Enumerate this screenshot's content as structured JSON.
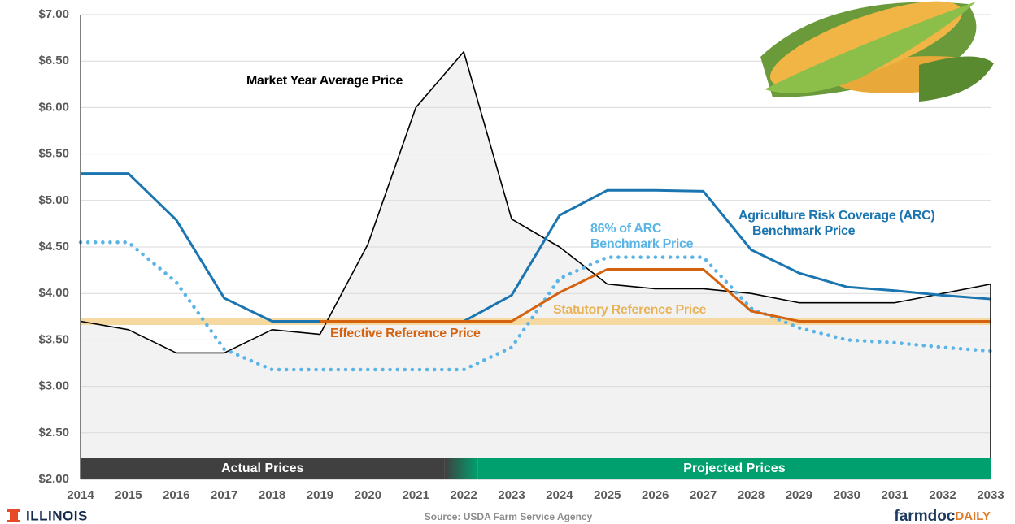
{
  "chart_data": {
    "type": "line",
    "x": [
      2014,
      2015,
      2016,
      2017,
      2018,
      2019,
      2020,
      2021,
      2022,
      2023,
      2024,
      2025,
      2026,
      2027,
      2028,
      2029,
      2030,
      2031,
      2032,
      2033
    ],
    "xlim": [
      2014,
      2033
    ],
    "ylim": [
      2,
      7
    ],
    "yticks": [
      {
        "value": 2,
        "label": "$2.00"
      },
      {
        "value": 2.5,
        "label": "$2.50"
      },
      {
        "value": 3,
        "label": "$3.00"
      },
      {
        "value": 3.5,
        "label": "$3.50"
      },
      {
        "value": 4,
        "label": "$4.00"
      },
      {
        "value": 4.5,
        "label": "$4.50"
      },
      {
        "value": 5,
        "label": "$5.00"
      },
      {
        "value": 5.5,
        "label": "$5.50"
      },
      {
        "value": 6,
        "label": "$6.00"
      },
      {
        "value": 6.5,
        "label": "$6.50"
      },
      {
        "value": 7,
        "label": "$7.00"
      }
    ],
    "grid": true,
    "series": [
      {
        "label": [
          "Statutory Reference Price"
        ],
        "color": "#f5d9a0",
        "text_color": "#e8b45a",
        "style": "band",
        "values": [
          3.7,
          3.7,
          3.7,
          3.7,
          3.7,
          3.7,
          3.7,
          3.7,
          3.7,
          3.7,
          3.7,
          3.7,
          3.7,
          3.7,
          3.7,
          3.7,
          3.7,
          3.7,
          3.7,
          3.7
        ]
      },
      {
        "label": [
          "Market Year Average Price"
        ],
        "color": "#000000",
        "text_color": "#000000",
        "style": "area",
        "fill": "#f2f2f2",
        "values": [
          3.7,
          3.61,
          3.36,
          3.36,
          3.61,
          3.56,
          4.53,
          6.0,
          6.6,
          4.8,
          4.5,
          4.1,
          4.05,
          4.05,
          4.0,
          3.9,
          3.9,
          3.9,
          4.0,
          4.1
        ]
      },
      {
        "label": [
          "86% of ARC",
          "Benchmark Price"
        ],
        "color": "#5ab4e5",
        "text_color": "#5ab4e5",
        "style": "dotted",
        "values": [
          4.55,
          4.55,
          4.12,
          3.4,
          3.18,
          3.18,
          3.18,
          3.18,
          3.18,
          3.42,
          4.16,
          4.39,
          4.39,
          4.39,
          3.84,
          3.63,
          3.5,
          3.47,
          3.42,
          3.38
        ]
      },
      {
        "label": [
          "Agriculture Risk Coverage (ARC)",
          "Benchmark Price"
        ],
        "color": "#1a75b0",
        "text_color": "#1a75b0",
        "style": "solid",
        "values": [
          5.29,
          5.29,
          4.79,
          3.95,
          3.7,
          3.7,
          3.7,
          3.7,
          3.7,
          3.98,
          4.84,
          5.11,
          5.11,
          5.1,
          4.47,
          4.22,
          4.07,
          4.03,
          3.98,
          3.94
        ]
      },
      {
        "label": [
          "Effective Reference Price"
        ],
        "color": "#d4620f",
        "text_color": "#d4620f",
        "style": "solid",
        "values": [
          null,
          null,
          null,
          null,
          null,
          3.7,
          3.7,
          3.7,
          3.7,
          3.7,
          4.01,
          4.26,
          4.26,
          4.26,
          3.81,
          3.7,
          3.7,
          3.7,
          3.7,
          3.7
        ]
      }
    ],
    "bands": [
      {
        "label": "Actual Prices",
        "color": "#404040"
      },
      {
        "label": "Projected Prices",
        "color": "#00a06e"
      }
    ],
    "source": "Source: USDA Farm Service Agency",
    "logo_left": "ILLINOIS",
    "logo_right": [
      "farmdoc",
      "DAILY"
    ]
  }
}
